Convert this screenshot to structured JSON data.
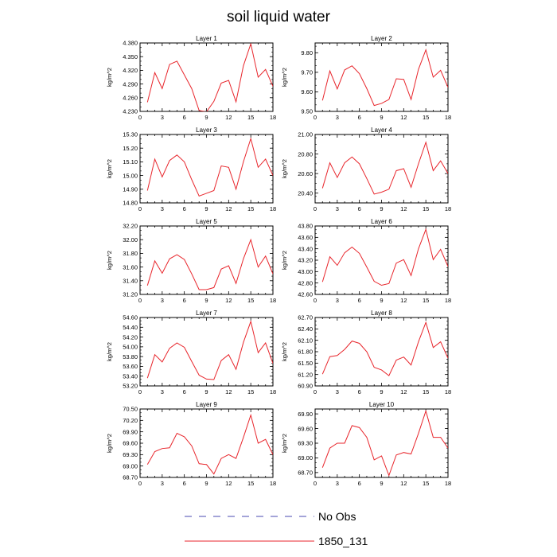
{
  "title": "soil liquid water",
  "legend": [
    {
      "label": "No Obs",
      "color": "#4a4ab0",
      "style": "dashed"
    },
    {
      "label": "1850_131",
      "color": "#e8262c",
      "style": "solid"
    }
  ],
  "chart_data": {
    "type": "line",
    "x": [
      1,
      2,
      3,
      4,
      5,
      6,
      7,
      8,
      9,
      10,
      11,
      12,
      13,
      14,
      15,
      16,
      17,
      18
    ],
    "xticks": [
      0,
      3,
      6,
      9,
      12,
      15,
      18
    ],
    "xlim": [
      0,
      18
    ],
    "series_name": "1850_131",
    "panels": [
      {
        "title": "Layer 1",
        "ylabel": "kg/m^2",
        "ylim": [
          4.23,
          4.38
        ],
        "yticks": [
          "4.230",
          "4.260",
          "4.290",
          "4.320",
          "4.350",
          "4.380"
        ],
        "values": [
          4.25,
          4.315,
          4.28,
          4.333,
          4.34,
          4.31,
          4.28,
          4.232,
          4.229,
          4.252,
          4.292,
          4.298,
          4.251,
          4.33,
          4.378,
          4.305,
          4.322,
          4.285
        ]
      },
      {
        "title": "Layer 2",
        "ylabel": "kg/m^2",
        "ylim": [
          9.5,
          9.85
        ],
        "yticks": [
          "9.50",
          "9.60",
          "9.70",
          "9.80"
        ],
        "values": [
          9.556,
          9.707,
          9.615,
          9.712,
          9.733,
          9.693,
          9.617,
          9.53,
          9.541,
          9.561,
          9.667,
          9.664,
          9.561,
          9.715,
          9.815,
          9.675,
          9.71,
          9.623
        ]
      },
      {
        "title": "Layer 3",
        "ylabel": "kg/m^2",
        "ylim": [
          14.8,
          15.3
        ],
        "yticks": [
          "14.80",
          "14.90",
          "15.00",
          "15.10",
          "15.20",
          "15.30"
        ],
        "values": [
          14.89,
          15.12,
          14.99,
          15.11,
          15.15,
          15.1,
          14.97,
          14.85,
          14.87,
          14.89,
          15.07,
          15.06,
          14.9,
          15.1,
          15.27,
          15.06,
          15.12,
          15.0
        ]
      },
      {
        "title": "Layer 4",
        "ylabel": "kg/m^2",
        "ylim": [
          20.3,
          21.0
        ],
        "yticks": [
          "20.40",
          "20.60",
          "20.80",
          "21.00"
        ],
        "values": [
          20.45,
          20.71,
          20.56,
          20.71,
          20.77,
          20.7,
          20.55,
          20.39,
          20.41,
          20.44,
          20.63,
          20.65,
          20.46,
          20.7,
          20.92,
          20.63,
          20.73,
          20.6
        ]
      },
      {
        "title": "Layer 5",
        "ylabel": "kg/m^2",
        "ylim": [
          31.2,
          32.2
        ],
        "yticks": [
          "31.20",
          "31.40",
          "31.60",
          "31.80",
          "32.00",
          "32.20"
        ],
        "values": [
          31.33,
          31.69,
          31.51,
          31.72,
          31.78,
          31.71,
          31.5,
          31.27,
          31.27,
          31.3,
          31.57,
          31.62,
          31.36,
          31.72,
          32.0,
          31.6,
          31.76,
          31.5
        ]
      },
      {
        "title": "Layer 6",
        "ylabel": "kg/m^2",
        "ylim": [
          42.6,
          43.8
        ],
        "yticks": [
          "42.60",
          "42.80",
          "43.00",
          "43.20",
          "43.40",
          "43.60",
          "43.80"
        ],
        "values": [
          42.82,
          43.26,
          43.11,
          43.33,
          43.43,
          43.32,
          43.08,
          42.83,
          42.76,
          42.79,
          43.15,
          43.21,
          42.93,
          43.4,
          43.74,
          43.21,
          43.39,
          43.09
        ]
      },
      {
        "title": "Layer 7",
        "ylabel": "kg/m^2",
        "ylim": [
          53.2,
          54.6
        ],
        "yticks": [
          "53.20",
          "53.40",
          "53.60",
          "53.80",
          "54.00",
          "54.20",
          "54.40",
          "54.60"
        ],
        "values": [
          53.36,
          53.84,
          53.69,
          53.97,
          54.08,
          53.99,
          53.7,
          53.42,
          53.34,
          53.33,
          53.72,
          53.84,
          53.54,
          54.09,
          54.52,
          53.88,
          54.08,
          53.66
        ]
      },
      {
        "title": "Layer 8",
        "ylabel": "kg/m^2",
        "ylim": [
          60.9,
          62.7
        ],
        "yticks": [
          "60.90",
          "61.20",
          "61.50",
          "61.80",
          "62.10",
          "62.40",
          "62.70"
        ],
        "values": [
          61.21,
          61.67,
          61.7,
          61.86,
          62.08,
          62.02,
          61.8,
          61.39,
          61.32,
          61.17,
          61.58,
          61.66,
          61.45,
          62.06,
          62.57,
          61.91,
          62.06,
          61.63
        ]
      },
      {
        "title": "Layer 9",
        "ylabel": "kg/m^2",
        "ylim": [
          68.7,
          70.5
        ],
        "yticks": [
          "68.70",
          "69.00",
          "69.30",
          "69.60",
          "69.90",
          "70.20",
          "70.50"
        ],
        "values": [
          69.04,
          69.38,
          69.46,
          69.48,
          69.86,
          69.77,
          69.53,
          69.06,
          69.04,
          68.79,
          69.2,
          69.3,
          69.2,
          69.75,
          70.34,
          69.6,
          69.7,
          69.3
        ]
      },
      {
        "title": "Layer 10",
        "ylabel": "kg/m^2",
        "ylim": [
          68.6,
          70.0
        ],
        "yticks": [
          "68.70",
          "69.00",
          "69.30",
          "69.60",
          "69.90"
        ],
        "values": [
          68.8,
          69.2,
          69.3,
          69.3,
          69.66,
          69.62,
          69.42,
          68.96,
          69.04,
          68.64,
          69.06,
          69.11,
          69.08,
          69.5,
          69.96,
          69.42,
          69.42,
          69.2
        ]
      }
    ]
  }
}
